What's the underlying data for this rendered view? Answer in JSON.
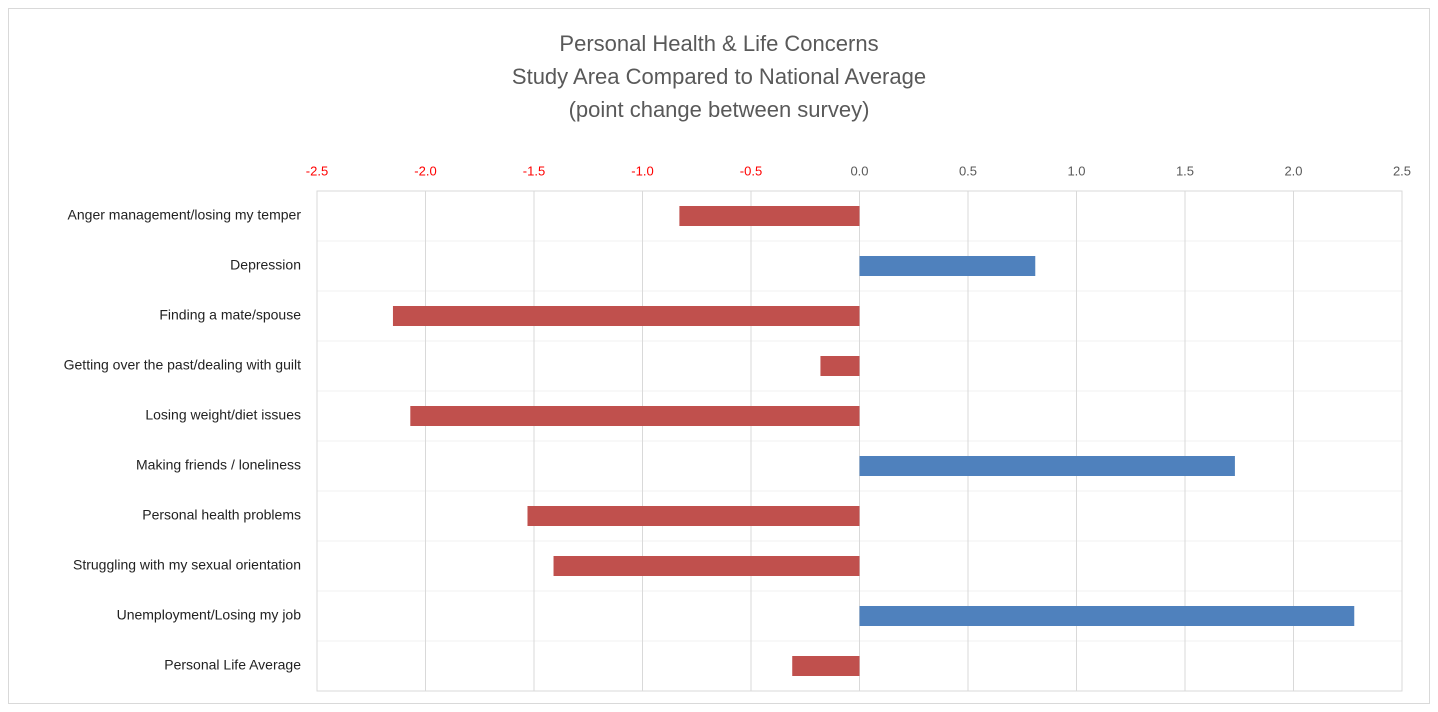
{
  "chart_data": {
    "type": "bar",
    "orientation": "horizontal",
    "title": [
      "Personal Health & Life Concerns",
      "Study Area Compared to National Average",
      "(point change between survey)"
    ],
    "categories": [
      "Anger management/losing my temper",
      "Depression",
      "Finding a mate/spouse",
      "Getting over the past/dealing with guilt",
      "Losing weight/diet issues",
      "Making friends / loneliness",
      "Personal health problems",
      "Struggling with my sexual orientation",
      "Unemployment/Losing my job",
      "Personal Life Average"
    ],
    "values": [
      -0.83,
      0.81,
      -2.15,
      -0.18,
      -2.07,
      1.73,
      -1.53,
      -1.41,
      2.28,
      -0.31
    ],
    "positive_color": "#4f81bd",
    "negative_color": "#c0504d",
    "negative_tick_color": "#ff0000",
    "tick_color": "#595959",
    "xlim": [
      -2.5,
      2.5
    ],
    "xticks": [
      {
        "value": -2.5,
        "label": "-2.5"
      },
      {
        "value": -2,
        "label": "-2.0"
      },
      {
        "value": -1.5,
        "label": "-1.5"
      },
      {
        "value": -1,
        "label": "-1.0"
      },
      {
        "value": -0.5,
        "label": "-0.5"
      },
      {
        "value": 0,
        "label": "0.0"
      },
      {
        "value": 0.5,
        "label": "0.5"
      },
      {
        "value": 1,
        "label": "1.0"
      },
      {
        "value": 1.5,
        "label": "1.5"
      },
      {
        "value": 2,
        "label": "2.0"
      },
      {
        "value": 2.5,
        "label": "2.5"
      }
    ],
    "grid": true
  }
}
